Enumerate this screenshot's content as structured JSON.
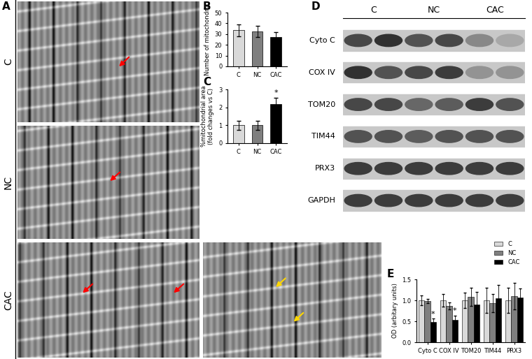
{
  "panel_labels": [
    "A",
    "B",
    "C",
    "D",
    "E"
  ],
  "micrographs": {
    "row_labels": [
      "C",
      "NC",
      "CAC"
    ]
  },
  "chart_data": [
    {
      "type": "bar",
      "categories": [
        "C",
        "NC",
        "CAC"
      ],
      "values": [
        33.5,
        32.5,
        27.5
      ],
      "errors": [
        5.5,
        5,
        4.5
      ],
      "colors": [
        "#d9d9d9",
        "#7f7f7f",
        "#000000"
      ],
      "y_label": "Number of mitochondria",
      "ylim": [
        0,
        50
      ],
      "yticks": [
        0,
        10,
        20,
        30,
        40,
        50
      ]
    },
    {
      "type": "bar",
      "categories": [
        "C",
        "NC",
        "CAC"
      ],
      "values": [
        1,
        1,
        2.2
      ],
      "errors": [
        0.25,
        0.25,
        0.35
      ],
      "colors": [
        "#d9d9d9",
        "#7f7f7f",
        "#000000"
      ],
      "y_label": "%mitochondrial area\n(fold changes vs C)",
      "significance": [
        null,
        null,
        "*"
      ],
      "ylim": [
        0,
        3
      ],
      "yticks": [
        0,
        1,
        2,
        3
      ]
    },
    {
      "type": "bar",
      "categories": [
        "Cyto C",
        "COX IV",
        "TOM20",
        "TIM44",
        "PRX3"
      ],
      "series": [
        {
          "name": "C",
          "color": "#d9d9d9",
          "values": [
            1,
            1,
            1,
            1,
            1
          ],
          "errors": [
            0.12,
            0.15,
            0.18,
            0.3,
            0.3
          ]
        },
        {
          "name": "NC",
          "color": "#7f7f7f",
          "values": [
            0.98,
            0.87,
            1.08,
            0.93,
            1.1
          ],
          "errors": [
            0.05,
            0.08,
            0.22,
            0.22,
            0.32
          ]
        },
        {
          "name": "CAC",
          "color": "#000000",
          "values": [
            0.48,
            0.53,
            0.9,
            1.05,
            1.07
          ],
          "errors": [
            0.08,
            0.1,
            0.3,
            0.32,
            0.22
          ],
          "significance": [
            "*",
            "*",
            null,
            null,
            null
          ]
        }
      ],
      "y_label": "OD (arbitary units)",
      "ylim": [
        0,
        1.5
      ],
      "yticks": [
        {
          "value": 0,
          "label": "0.0"
        },
        0.5,
        {
          "value": 1,
          "label": "1.0"
        },
        1.5
      ],
      "legend": "upper right"
    }
  ],
  "western_blot": {
    "groups": [
      "C",
      "NC",
      "CAC"
    ],
    "rows": [
      {
        "label": "Cyto C",
        "intensity": [
          0.85,
          0.95,
          0.8,
          0.85,
          0.55,
          0.4
        ]
      },
      {
        "label": "COX IV",
        "intensity": [
          0.95,
          0.8,
          0.85,
          0.9,
          0.5,
          0.5
        ]
      },
      {
        "label": "TOM20",
        "intensity": [
          0.85,
          0.85,
          0.7,
          0.75,
          0.9,
          0.8
        ]
      },
      {
        "label": "TIM44",
        "intensity": [
          0.8,
          0.8,
          0.75,
          0.8,
          0.8,
          0.8
        ]
      },
      {
        "label": "PRX3",
        "intensity": [
          0.9,
          0.9,
          0.9,
          0.9,
          0.9,
          0.9
        ]
      },
      {
        "label": "GAPDH",
        "intensity": [
          0.9,
          0.9,
          0.9,
          0.9,
          0.9,
          0.9
        ]
      }
    ]
  }
}
